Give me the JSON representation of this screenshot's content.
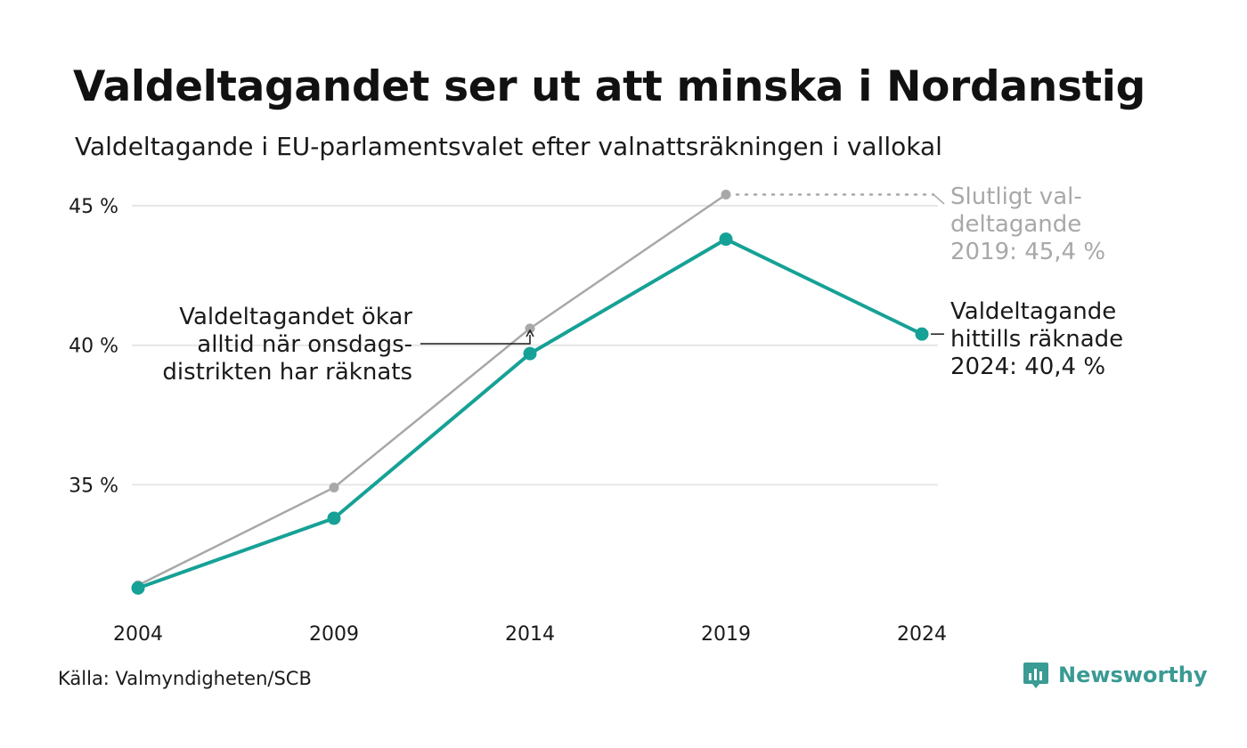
{
  "header": {
    "title": "Valdeltagandet ser ut att minska i Nordanstig",
    "subtitle": "Valdeltagande i EU-parlamentsvalet efter valnattsräkningen i vallokal"
  },
  "footer": {
    "source": "Källa: Valmyndigheten/SCB",
    "brand": "Newsworthy",
    "brand_icon": "newsworthy-logo-icon"
  },
  "colors": {
    "primary": "#16a196",
    "secondary": "#a8a8a8",
    "grid": "#e6e6e6",
    "text": "#1a1a1a",
    "brand": "#3a9a94"
  },
  "chart_data": {
    "type": "line",
    "categories": [
      "2004",
      "2009",
      "2014",
      "2019",
      "2024"
    ],
    "ylim": [
      30.8,
      46.5
    ],
    "yticks": [
      35,
      40,
      45
    ],
    "ytick_labels": [
      "35 %",
      "40 %",
      "45 %"
    ],
    "grid": true,
    "series": [
      {
        "key": "final",
        "values": [
          31.4,
          34.9,
          40.6,
          45.4,
          null
        ]
      },
      {
        "key": "counted",
        "values": [
          31.3,
          33.8,
          39.7,
          43.8,
          40.4
        ]
      }
    ],
    "annotations": {
      "final": [
        "Slutligt val-",
        "deltagande",
        "2019: 45,4 %"
      ],
      "counted": [
        "Valdeltagande",
        "hittills räknade",
        "2024: 40,4 %"
      ],
      "note": [
        "Valdeltagandet ökar",
        "alltid när onsdags-",
        "distrikten har räknats"
      ]
    }
  }
}
